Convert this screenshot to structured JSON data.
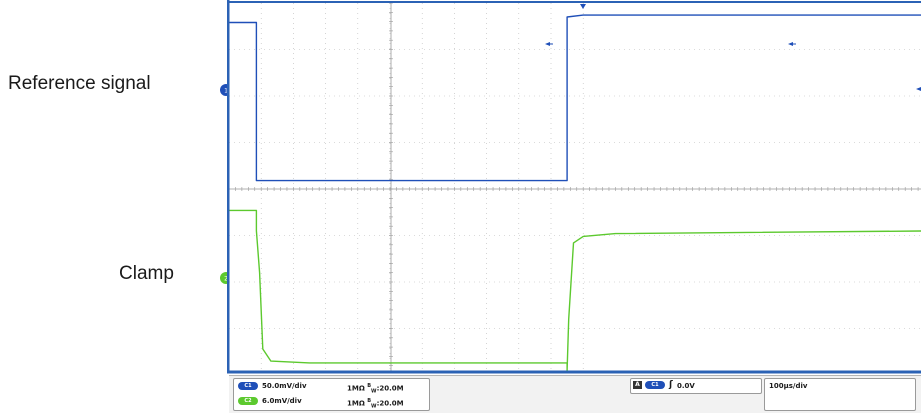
{
  "chart_data": {
    "type": "line",
    "title": "",
    "xlabel": "",
    "ylabel": "",
    "series": [
      {
        "name": "Reference signal",
        "color": "#1f4fb8",
        "points": [
          [
            0,
            0.79
          ],
          [
            0.85,
            0.79
          ],
          [
            0.85,
            -0.91
          ],
          [
            10.5,
            -0.91
          ],
          [
            10.5,
            0.85
          ],
          [
            11,
            0.87
          ],
          [
            22.2,
            0.87
          ],
          [
            22.2,
            -0.72
          ],
          [
            22.6,
            -0.91
          ]
        ]
      },
      {
        "name": "Clamp",
        "color": "#5cc92e",
        "points": [
          [
            0,
            0.77
          ],
          [
            0.85,
            0.77
          ],
          [
            0.85,
            0.55
          ],
          [
            0.95,
            0.1
          ],
          [
            1.05,
            -0.72
          ],
          [
            1.3,
            -0.85
          ],
          [
            2.5,
            -0.87
          ],
          [
            10.5,
            -0.87
          ],
          [
            10.5,
            -0.95
          ],
          [
            10.55,
            -0.4
          ],
          [
            10.7,
            0.42
          ],
          [
            11,
            0.49
          ],
          [
            12,
            0.52
          ],
          [
            22.2,
            0.55
          ],
          [
            22.2,
            0.8
          ],
          [
            22.3,
            -0.35
          ],
          [
            22.5,
            -0.85
          ]
        ]
      }
    ],
    "xlim": [
      0,
      22.4
    ],
    "divisions_x": 10.8,
    "divisions_y_per_channel": 4,
    "grid": true
  },
  "labels": {
    "reference": "Reference signal",
    "clamp": "Clamp"
  },
  "status_bar": {
    "ch1_tag": "C1",
    "ch1_scale": "50.0mV/div",
    "ch1_coupling": "1MΩ",
    "ch1_bw_b": "B",
    "ch1_bw_w": "W",
    "ch1_bw_value": ":20.0M",
    "ch2_tag": "C2",
    "ch2_scale": "6.0mV/div",
    "ch2_coupling": "1MΩ",
    "ch2_bw_b": "B",
    "ch2_bw_w": "W",
    "ch2_bw_value": ":20.0M",
    "trigger_mode": "A",
    "trigger_source": "C1",
    "trigger_slope": "ʃ",
    "trigger_level": "0.0V",
    "timebase": "100µs/div"
  },
  "colors": {
    "ch1": "#1f4fb8",
    "ch2": "#5cc92e",
    "frame": "#2b62b5",
    "grid": "#b8b8b8"
  }
}
